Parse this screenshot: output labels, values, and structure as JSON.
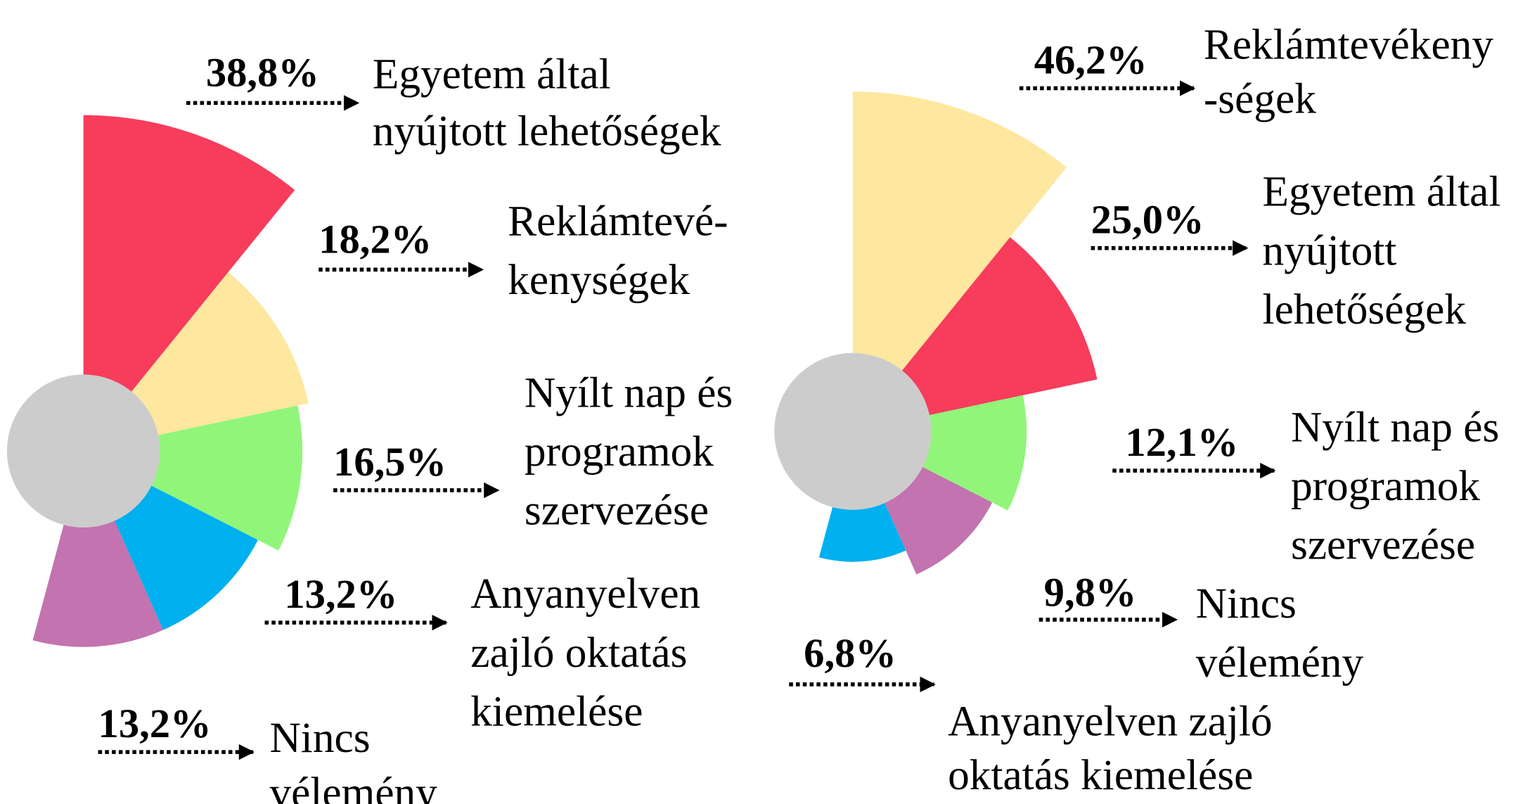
{
  "chart_data": [
    {
      "type": "polar",
      "categories": [
        [
          "Egyetem által",
          "nyújtott lehetőségek"
        ],
        [
          "Reklámtevé-",
          "kenységek"
        ],
        [
          "Nyílt nap és",
          "programok",
          "szervezése"
        ],
        [
          "Anyanyelven",
          "zajló oktatás",
          "kiemelése"
        ],
        [
          "Nincs",
          "vélemény"
        ]
      ],
      "values": [
        38.8,
        18.2,
        16.5,
        13.2,
        13.2
      ],
      "value_labels": [
        "38,8%",
        "18,2%",
        "16,5%",
        "13,2%",
        "13,2%"
      ],
      "colors": [
        "#f73c5c",
        "#fee79f",
        "#91f57a",
        "#00b0ef",
        "#c273b0"
      ]
    },
    {
      "type": "polar",
      "categories": [
        [
          "Reklámtevékeny",
          "-ségek"
        ],
        [
          "Egyetem által",
          "nyújtott",
          "lehetőségek"
        ],
        [
          "Nyílt nap és",
          "programok",
          "szervezése"
        ],
        [
          "Nincs",
          "vélemény"
        ],
        [
          "Anyanyelven zajló",
          "oktatás kiemelése"
        ]
      ],
      "values": [
        46.2,
        25.0,
        12.1,
        9.8,
        6.8
      ],
      "value_labels": [
        "46,2%",
        "25,0%",
        "12,1%",
        "9,8%",
        "6,8%"
      ],
      "colors": [
        "#fee79f",
        "#f73c5c",
        "#91f57a",
        "#c273b0",
        "#00b0ef"
      ]
    }
  ]
}
